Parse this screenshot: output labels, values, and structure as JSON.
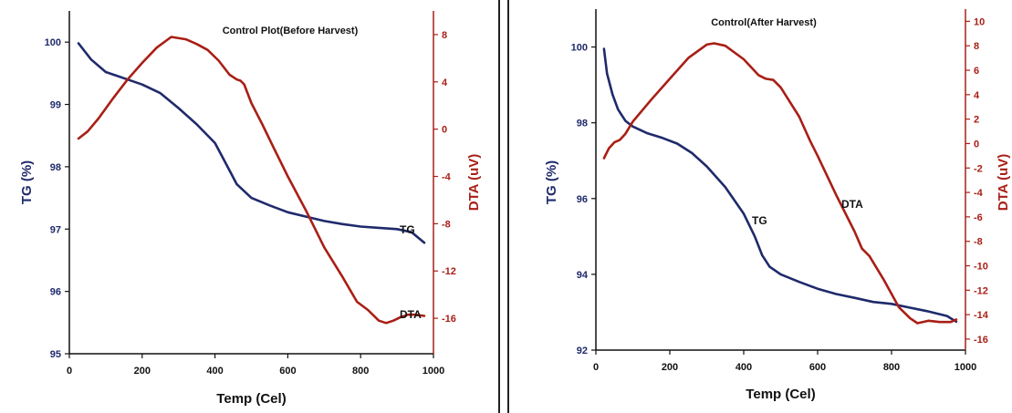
{
  "colors": {
    "tg": "#1f2a6b",
    "dta": "#a81f16",
    "axis": "#111111"
  },
  "chart_data": [
    {
      "type": "line",
      "title": "Control Plot(Before Harvest)",
      "xlabel": "Temp (Cel)",
      "ylabel_left": "TG (%)",
      "ylabel_right": "DTA (uV)",
      "xlim": [
        0,
        1000
      ],
      "ylim_left": [
        95,
        100.5
      ],
      "ylim_right": [
        -19,
        10
      ],
      "x_ticks": [
        "0",
        "200",
        "400",
        "600",
        "800",
        "1000"
      ],
      "y_left_ticks": [
        "95",
        "96",
        "97",
        "98",
        "99",
        "100"
      ],
      "y_right_ticks": [
        "8",
        "4",
        "0",
        "-4",
        "-8",
        "-12",
        "-16"
      ],
      "annotations": {
        "tg": "TG",
        "dta": "DTA"
      },
      "series": [
        {
          "name": "TG",
          "axis": "left",
          "x": [
            25,
            60,
            100,
            150,
            200,
            250,
            300,
            350,
            400,
            430,
            460,
            500,
            550,
            600,
            650,
            700,
            750,
            800,
            850,
            900,
            940,
            975
          ],
          "y": [
            99.98,
            99.72,
            99.52,
            99.42,
            99.32,
            99.18,
            98.94,
            98.68,
            98.38,
            98.05,
            97.72,
            97.5,
            97.38,
            97.27,
            97.2,
            97.13,
            97.08,
            97.04,
            97.02,
            97.0,
            96.95,
            96.78
          ]
        },
        {
          "name": "DTA",
          "axis": "right",
          "x": [
            25,
            50,
            80,
            120,
            160,
            200,
            240,
            280,
            320,
            350,
            380,
            410,
            440,
            460,
            470,
            480,
            500,
            530,
            560,
            600,
            650,
            700,
            750,
            790,
            820,
            850,
            870,
            890,
            910,
            930,
            950,
            975
          ],
          "y": [
            -0.8,
            -0.2,
            0.9,
            2.6,
            4.2,
            5.6,
            6.9,
            7.8,
            7.6,
            7.2,
            6.7,
            5.8,
            4.6,
            4.2,
            4.1,
            3.8,
            2.2,
            0.4,
            -1.5,
            -4.0,
            -6.9,
            -10.0,
            -12.5,
            -14.6,
            -15.3,
            -16.2,
            -16.4,
            -16.2,
            -15.9,
            -15.7,
            -15.7,
            -15.8
          ]
        }
      ]
    },
    {
      "type": "line",
      "title": "Control(After Harvest)",
      "xlabel": "Temp (Cel)",
      "ylabel_left": "TG (%)",
      "ylabel_right": "DTA (uV)",
      "xlim": [
        0,
        1000
      ],
      "ylim_left": [
        92,
        101
      ],
      "ylim_right": [
        -16.9,
        11
      ],
      "x_ticks": [
        "0",
        "200",
        "400",
        "600",
        "800",
        "1000"
      ],
      "y_left_ticks": [
        "92",
        "94",
        "96",
        "98",
        "100"
      ],
      "y_right_ticks": [
        "10",
        "8",
        "6",
        "4",
        "2",
        "0",
        "-2",
        "-4",
        "-6",
        "-8",
        "-10",
        "-12",
        "-14",
        "-16"
      ],
      "annotations": {
        "tg": "TG",
        "dta": "DTA"
      },
      "series": [
        {
          "name": "TG",
          "axis": "left",
          "x": [
            22,
            30,
            45,
            60,
            80,
            100,
            140,
            180,
            220,
            260,
            300,
            350,
            400,
            430,
            450,
            470,
            500,
            550,
            600,
            650,
            700,
            750,
            800,
            850,
            900,
            950,
            975
          ],
          "y": [
            99.95,
            99.3,
            98.75,
            98.35,
            98.05,
            97.9,
            97.72,
            97.6,
            97.45,
            97.2,
            96.85,
            96.3,
            95.6,
            95.0,
            94.5,
            94.2,
            94.0,
            93.8,
            93.62,
            93.48,
            93.38,
            93.27,
            93.22,
            93.12,
            93.02,
            92.9,
            92.75
          ]
        },
        {
          "name": "DTA",
          "axis": "right",
          "x": [
            22,
            35,
            50,
            65,
            80,
            100,
            150,
            200,
            250,
            300,
            320,
            350,
            400,
            440,
            460,
            480,
            500,
            550,
            580,
            600,
            650,
            700,
            720,
            740,
            780,
            820,
            850,
            870,
            900,
            930,
            960,
            975
          ],
          "y": [
            -1.2,
            -0.4,
            0.1,
            0.3,
            0.8,
            1.8,
            3.6,
            5.3,
            7.0,
            8.1,
            8.2,
            8.0,
            6.9,
            5.6,
            5.3,
            5.2,
            4.6,
            2.2,
            0.2,
            -1.0,
            -4.2,
            -7.2,
            -8.6,
            -9.2,
            -11.2,
            -13.4,
            -14.3,
            -14.7,
            -14.5,
            -14.6,
            -14.6,
            -14.4
          ]
        }
      ]
    }
  ]
}
